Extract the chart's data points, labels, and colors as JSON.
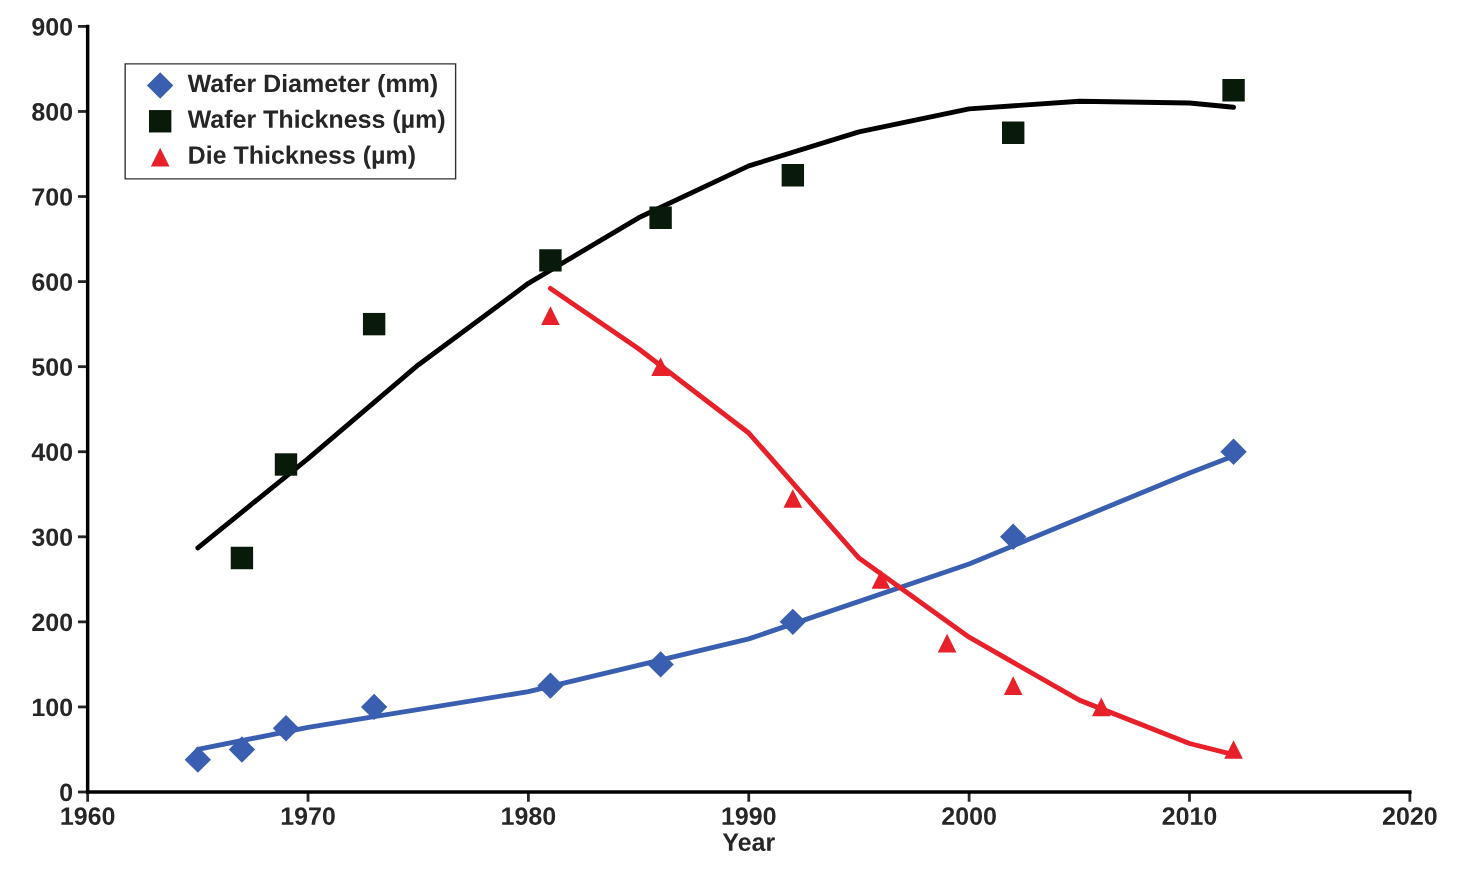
{
  "chart_data": {
    "type": "scatter",
    "xlabel": "Year",
    "xlim": [
      1960,
      2020
    ],
    "xticks": [
      1960,
      1970,
      1980,
      1990,
      2000,
      2010,
      2020
    ],
    "ylim": [
      0,
      900
    ],
    "yticks": [
      0,
      100,
      200,
      300,
      400,
      500,
      600,
      700,
      800,
      900
    ],
    "grid": false,
    "legend": "top left",
    "series": [
      {
        "name": "Wafer Diameter (mm)",
        "color": "#3a5fb0",
        "marker": "diamond",
        "x": [
          1965,
          1967,
          1969,
          1973,
          1981,
          1986,
          1992,
          2002,
          2012
        ],
        "values": [
          38,
          50,
          75,
          100,
          125,
          150,
          200,
          300,
          400
        ]
      },
      {
        "name": "Wafer Thickness (µm)",
        "color": "#0a1a0a",
        "marker": "square",
        "x": [
          1967,
          1969,
          1973,
          1981,
          1986,
          1992,
          2002,
          2012
        ],
        "values": [
          275,
          385,
          550,
          625,
          675,
          725,
          775,
          825
        ]
      },
      {
        "name": "Die Thickness (µm)",
        "color": "#e8202a",
        "marker": "triangle",
        "x": [
          1981,
          1986,
          1992,
          1996,
          1999,
          2002,
          2006,
          2012
        ],
        "values": [
          560,
          500,
          345,
          250,
          175,
          125,
          100,
          50
        ]
      },
      {
        "type": "line",
        "color": "#3a5fb0",
        "marker": "none",
        "x": [
          1965,
          1970,
          1980,
          1990,
          2000,
          2010,
          2012
        ],
        "values": [
          50,
          76,
          118,
          180,
          268,
          375,
          395
        ]
      },
      {
        "type": "line",
        "color": "#000000",
        "marker": "none",
        "x": [
          1965,
          1970,
          1975,
          1980,
          1985,
          1990,
          1995,
          2000,
          2005,
          2010,
          2012
        ],
        "values": [
          287,
          392,
          502,
          598,
          675,
          736,
          776,
          803,
          812,
          810,
          805
        ]
      },
      {
        "type": "line",
        "color": "#e8202a",
        "marker": "none",
        "x": [
          1981,
          1985,
          1990,
          1995,
          2000,
          2005,
          2010,
          2012
        ],
        "values": [
          592,
          521,
          422,
          275,
          182,
          108,
          57,
          44
        ]
      }
    ]
  }
}
